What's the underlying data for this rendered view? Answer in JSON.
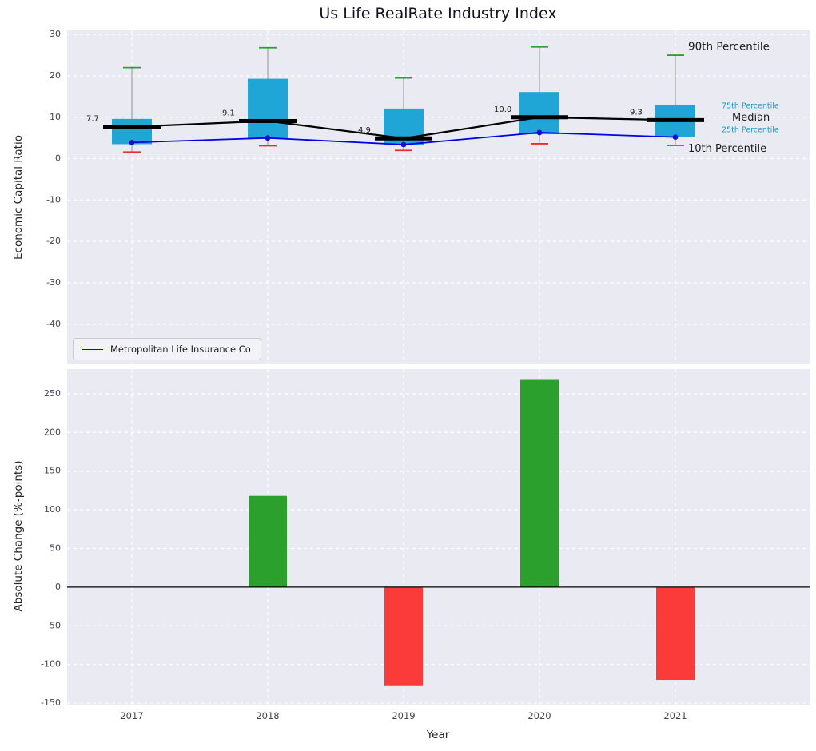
{
  "title": "Us Life RealRate Industry Index",
  "colors": {
    "panel_bg": "#eaeaf2",
    "grid": "#ffffff",
    "box": "#1fa5d6",
    "median_line": "#000000",
    "company_line": "#0000e6",
    "company_marker": "#1111cc",
    "whisker": "#999999",
    "cap_top": "#2ca02c",
    "cap_bottom": "#e53127",
    "bar_positive": "#2ca02c",
    "bar_negative": "#fb3a3a",
    "tick_label": "#45454f",
    "zero_line": "#000000"
  },
  "legend": {
    "company_label": "Metropolitan Life Insurance Co"
  },
  "chart_data": [
    {
      "type": "boxplot+line",
      "title": "Us Life RealRate Industry Index",
      "ylabel": "Economic Capital Ratio",
      "x": [
        "2017",
        "2018",
        "2019",
        "2020",
        "2021"
      ],
      "yticks": [
        30,
        20,
        10,
        0,
        -10,
        -20,
        -30,
        -40
      ],
      "ylim": [
        -49.5,
        31
      ],
      "grid": true,
      "p90": [
        22.0,
        26.8,
        19.5,
        27.0,
        25.0
      ],
      "p75": [
        9.6,
        19.3,
        12.1,
        16.1,
        13.0
      ],
      "median": [
        7.7,
        9.1,
        4.9,
        10.0,
        9.3
      ],
      "median_labels": [
        "7.7",
        "9.1",
        "4.9",
        "10.0",
        "9.3"
      ],
      "p25": [
        3.5,
        4.8,
        3.2,
        5.9,
        5.3
      ],
      "p10": [
        1.6,
        3.1,
        2.0,
        3.6,
        3.2
      ],
      "company": {
        "name": "Metropolitan Life Insurance Co",
        "values": [
          3.9,
          5.0,
          3.4,
          6.3,
          5.2
        ]
      },
      "annotations": [
        {
          "text": "90th Percentile",
          "x": 861,
          "v": 27.0,
          "size": 13.5,
          "color": "#1a1a1a"
        },
        {
          "text": "75th Percentile",
          "x": 903,
          "v": 12.7,
          "size": 9.5,
          "color": "#1f9ac9"
        },
        {
          "text": "Median",
          "x": 916,
          "v": 9.9,
          "size": 13,
          "color": "#1a1a1a"
        },
        {
          "text": "25th Percentile",
          "x": 903,
          "v": 6.9,
          "size": 9.5,
          "color": "#1f9ac9"
        },
        {
          "text": "10th Percentile",
          "x": 861,
          "v": 2.3,
          "size": 13,
          "color": "#1a1a1a"
        }
      ]
    },
    {
      "type": "bar",
      "ylabel": "Absolute Change (%-points)",
      "xlabel": "Year",
      "categories": [
        "2017",
        "2018",
        "2019",
        "2020",
        "2021"
      ],
      "values": [
        0,
        118,
        -128,
        268,
        -120
      ],
      "yticks": [
        250,
        200,
        150,
        100,
        50,
        0,
        -50,
        -100,
        -150
      ],
      "ylim": [
        -152,
        282
      ],
      "grid": true
    }
  ]
}
